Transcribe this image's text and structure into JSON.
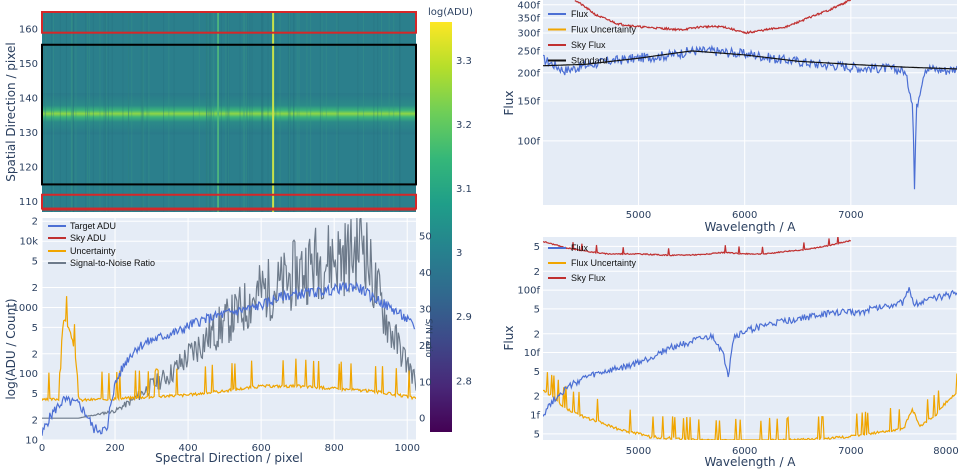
{
  "chart_data": [
    {
      "type": "heatmap",
      "ylabel": "Spatial Direction / pixel",
      "yticks": [
        110,
        120,
        130,
        140,
        150,
        160
      ],
      "ylim": [
        107,
        165
      ],
      "xlim": [
        0,
        1024
      ],
      "colorbar": {
        "title": "log(ADU)",
        "ticks": [
          2.8,
          2.9,
          3,
          3.1,
          3.2,
          3.3
        ],
        "range": [
          2.72,
          3.36
        ],
        "colorscale": "viridis"
      },
      "regions": [
        {
          "name": "sky",
          "color": "#d62728",
          "y": [
            108,
            112
          ]
        },
        {
          "name": "target",
          "color": "#000000",
          "y": [
            115,
            155.5
          ]
        },
        {
          "name": "sky",
          "color": "#d62728",
          "y": [
            159,
            165
          ]
        }
      ],
      "bright_trace_center_y": 135.5,
      "bright_columns_x": [
        480,
        630
      ]
    },
    {
      "type": "line",
      "xlabel": "Spectral Direction / pixel",
      "ylabel": "log(ADU / Count)",
      "y2label": "S/N ratio",
      "xlim": [
        0,
        1024
      ],
      "xticks": [
        0,
        200,
        400,
        600,
        800,
        1000
      ],
      "y_log": true,
      "ylim_log": [
        1,
        4.35
      ],
      "yticks": [
        {
          "v": 10,
          "l": "10"
        },
        {
          "v": 20,
          "l": "2"
        },
        {
          "v": 50,
          "l": "5"
        },
        {
          "v": 100,
          "l": "100"
        },
        {
          "v": 200,
          "l": "2"
        },
        {
          "v": 500,
          "l": "5"
        },
        {
          "v": 1000,
          "l": "1000"
        },
        {
          "v": 2000,
          "l": "2"
        },
        {
          "v": 5000,
          "l": "5"
        },
        {
          "v": 10000,
          "l": "10k"
        },
        {
          "v": 20000,
          "l": "2"
        },
        {
          "v": 50000,
          "l": "5"
        }
      ],
      "y2ticks": [
        0,
        10,
        20,
        30,
        40,
        50
      ],
      "y2lim": [
        -6,
        55
      ],
      "series": [
        {
          "name": "Target ADU",
          "color": "#4c6fd4",
          "x": [
            0,
            60,
            100,
            140,
            180,
            220,
            260,
            300,
            340,
            380,
            420,
            460,
            500,
            540,
            580,
            620,
            660,
            700,
            740,
            780,
            820,
            860,
            900,
            940,
            980,
            1020
          ],
          "y": [
            12,
            40,
            35,
            15,
            14,
            120,
            250,
            320,
            380,
            450,
            600,
            700,
            800,
            900,
            1000,
            1200,
            1500,
            1600,
            1700,
            1800,
            2000,
            2100,
            1500,
            1100,
            800,
            500
          ]
        },
        {
          "name": "Sky ADU",
          "color": "#c03030",
          "x": [
            0,
            200,
            400,
            470,
            480,
            490,
            600,
            625,
            630,
            640,
            700,
            800,
            900,
            1024
          ],
          "y": [
            30000,
            30000,
            30500,
            30000,
            50000,
            30000,
            30500,
            33000,
            60000,
            32000,
            30500,
            30500,
            30000,
            30000
          ]
        },
        {
          "name": "Uncertainty",
          "color": "#f0a500",
          "x": [
            0,
            50,
            60,
            100,
            200,
            300,
            400,
            500,
            600,
            700,
            800,
            900,
            1000,
            1024
          ],
          "y": [
            40,
            42,
            700,
            40,
            42,
            45,
            48,
            55,
            65,
            65,
            60,
            55,
            45,
            42
          ]
        },
        {
          "name": "Signal-to-Noise Ratio",
          "color": "#6e7b8b",
          "axis": "y2",
          "x": [
            0,
            100,
            150,
            200,
            250,
            300,
            350,
            400,
            450,
            500,
            550,
            600,
            650,
            700,
            750,
            800,
            850,
            880,
            900,
            950,
            1000,
            1024
          ],
          "y": [
            0,
            0,
            1,
            2,
            5,
            9,
            12,
            17,
            22,
            26,
            30,
            35,
            36,
            40,
            43,
            44,
            45,
            50,
            40,
            25,
            15,
            10
          ]
        }
      ]
    },
    {
      "type": "line",
      "xlabel": "Wavelength / A",
      "ylabel": "Flux",
      "xlim": [
        4100,
        8000
      ],
      "xticks": [
        5000,
        6000,
        7000
      ],
      "y_log": true,
      "ylim": [
        52,
        420
      ],
      "yticks": [
        {
          "v": 100,
          "l": "100f"
        },
        {
          "v": 150,
          "l": "150f"
        },
        {
          "v": 200,
          "l": "200f"
        },
        {
          "v": 250,
          "l": "250f"
        },
        {
          "v": 300,
          "l": "300f"
        },
        {
          "v": 350,
          "l": "350f"
        },
        {
          "v": 400,
          "l": "400f"
        }
      ],
      "series": [
        {
          "name": "Flux",
          "color": "#4c6fd4",
          "x": [
            4100,
            4300,
            4500,
            4700,
            4900,
            5100,
            5300,
            5500,
            5700,
            5900,
            6100,
            6300,
            6500,
            6700,
            6900,
            7100,
            7300,
            7500,
            7580,
            7600,
            7620,
            7700,
            7900,
            8000
          ],
          "y": [
            230,
            205,
            215,
            225,
            230,
            235,
            240,
            250,
            250,
            245,
            240,
            230,
            225,
            218,
            215,
            210,
            210,
            205,
            150,
            60,
            140,
            210,
            205,
            210
          ]
        },
        {
          "name": "Flux Uncertainty",
          "color": "#f0a500",
          "x": [],
          "y": []
        },
        {
          "name": "Sky Flux",
          "color": "#c03030",
          "x": [
            4400,
            4600,
            4800,
            5000,
            5200,
            5400,
            5600,
            5800,
            6000,
            6200,
            6400,
            6600,
            6800,
            7000
          ],
          "y": [
            420,
            360,
            330,
            320,
            315,
            310,
            320,
            320,
            300,
            310,
            320,
            350,
            380,
            420
          ]
        },
        {
          "name": "Standard",
          "color": "#111111",
          "x": [
            4100,
            4500,
            5000,
            5500,
            6000,
            6500,
            7000,
            7500,
            8000
          ],
          "y": [
            215,
            218,
            232,
            250,
            240,
            225,
            218,
            212,
            208
          ]
        }
      ]
    },
    {
      "type": "line",
      "xlabel": "Wavelength / A",
      "ylabel": "Flux",
      "xlim": [
        4100,
        8000
      ],
      "xticks": [
        5000,
        6000,
        7000,
        8000
      ],
      "y_log": true,
      "ylim_log": [
        -0.4,
        2.85
      ],
      "yticks": [
        {
          "v": 0.5,
          "l": "5"
        },
        {
          "v": 1,
          "l": "1f"
        },
        {
          "v": 2,
          "l": "2"
        },
        {
          "v": 5,
          "l": "5"
        },
        {
          "v": 10,
          "l": "10f"
        },
        {
          "v": 20,
          "l": "2"
        },
        {
          "v": 50,
          "l": "5"
        },
        {
          "v": 100,
          "l": "100f"
        },
        {
          "v": 200,
          "l": "2"
        },
        {
          "v": 500,
          "l": "5"
        }
      ],
      "series": [
        {
          "name": "Flux",
          "color": "#4c6fd4",
          "x": [
            4100,
            4300,
            4500,
            4700,
            4900,
            5100,
            5300,
            5500,
            5700,
            5850,
            5900,
            6100,
            6300,
            6500,
            6700,
            6900,
            7100,
            7300,
            7500,
            7550,
            7600,
            7800,
            8000
          ],
          "y": [
            1,
            2.5,
            4,
            5,
            6,
            8,
            12,
            15,
            18,
            4,
            18,
            25,
            30,
            35,
            40,
            45,
            45,
            55,
            65,
            100,
            60,
            75,
            90
          ]
        },
        {
          "name": "Flux Uncertainty",
          "color": "#f0a500",
          "x": [
            4100,
            4300,
            4500,
            4800,
            5100,
            5500,
            6000,
            6500,
            7000,
            7500,
            7580,
            7650,
            7800,
            8000
          ],
          "y": [
            2.5,
            1.3,
            0.9,
            0.6,
            0.45,
            0.4,
            0.38,
            0.4,
            0.45,
            0.6,
            1.2,
            0.65,
            1.0,
            2.2
          ]
        },
        {
          "name": "Sky Flux",
          "color": "#c03030",
          "x": [
            4100,
            4300,
            4500,
            4700,
            5000,
            5300,
            5600,
            5800,
            6000,
            6200,
            6400,
            6600,
            6800,
            7000
          ],
          "y": [
            600,
            480,
            420,
            380,
            380,
            360,
            370,
            400,
            380,
            380,
            420,
            450,
            520,
            620
          ]
        }
      ]
    }
  ]
}
